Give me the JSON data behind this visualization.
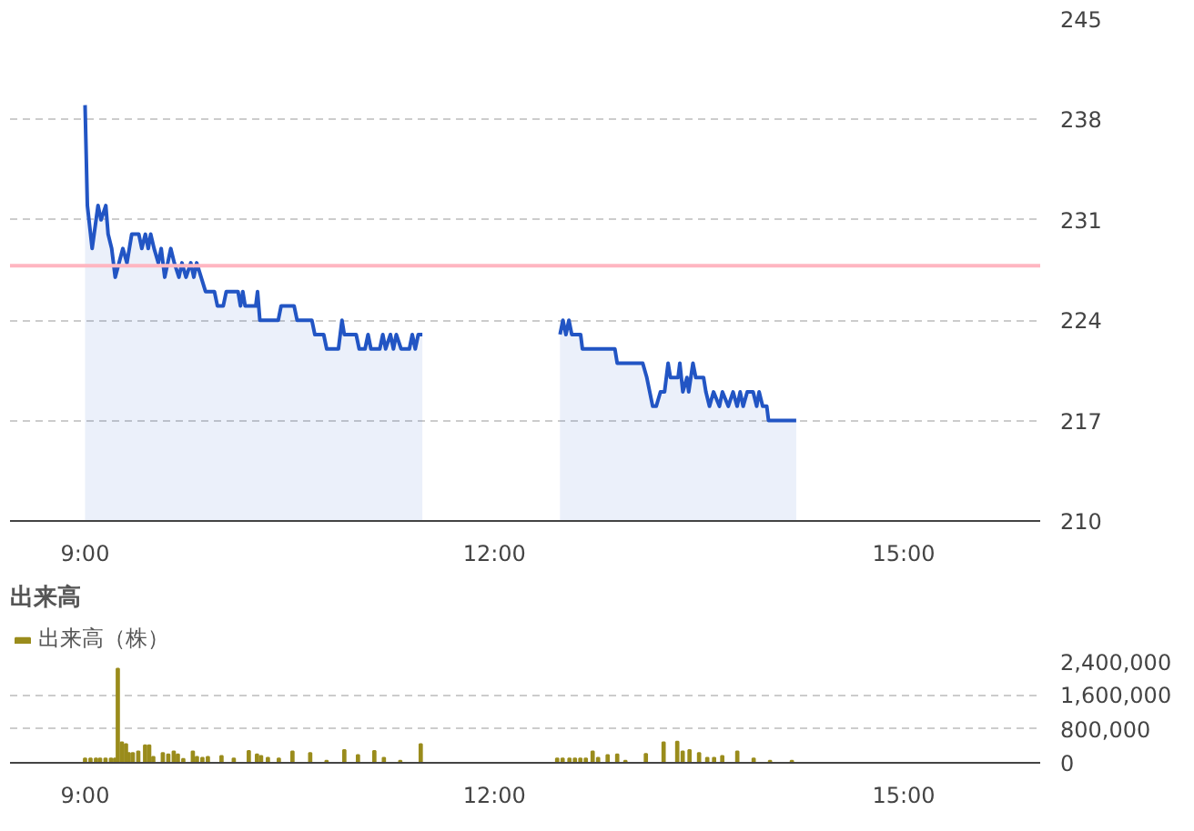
{
  "chart_data": [
    {
      "type": "area",
      "xlim": [
        8.45,
        16.0
      ],
      "xticks": [
        {
          "value": 9,
          "label": "9:00"
        },
        {
          "value": 12,
          "label": "12:00"
        },
        {
          "value": 15,
          "label": "15:00"
        }
      ],
      "ylim": [
        210,
        245
      ],
      "yticks": [
        210,
        217,
        224,
        231,
        238,
        245
      ],
      "grid": "y",
      "ref_lines": [
        {
          "axis": "y",
          "value": 227.8,
          "color": "#ffb6c1"
        }
      ],
      "series": [
        {
          "color": "#2255c4",
          "x": [
            9.0,
            9.017,
            9.052,
            9.095,
            9.117,
            9.152,
            9.169,
            9.195,
            9.221,
            9.277,
            9.307,
            9.342,
            9.394,
            9.416,
            9.442,
            9.463,
            9.481,
            9.506,
            9.537,
            9.558,
            9.584,
            9.628,
            9.654,
            9.688,
            9.71,
            9.74,
            9.775,
            9.797,
            9.818,
            9.883,
            9.948,
            9.97,
            10.013,
            10.035,
            10.121,
            10.139,
            10.156,
            10.173,
            10.251,
            10.264,
            10.281,
            10.416,
            10.437,
            10.532,
            10.554,
            10.662,
            10.684,
            10.749,
            10.771,
            10.857,
            10.883,
            10.9,
            10.987,
            11.009,
            11.052,
            11.074,
            11.095,
            11.16,
            11.182,
            11.203,
            11.238,
            11.26,
            11.281,
            11.316,
            11.377,
            11.398,
            11.42,
            11.442,
            11.472
          ],
          "values": [
            239,
            232,
            229,
            232,
            231,
            232,
            230,
            229,
            227,
            229,
            228,
            230,
            230,
            229,
            230,
            229,
            230,
            229,
            228,
            229,
            227,
            229,
            228,
            227,
            228,
            227,
            228,
            227,
            228,
            226,
            226,
            225,
            225,
            226,
            226,
            225,
            226,
            225,
            225,
            226,
            224,
            224,
            225,
            225,
            224,
            224,
            223,
            223,
            222,
            222,
            224,
            223,
            223,
            222,
            222,
            223,
            222,
            222,
            223,
            222,
            223,
            222,
            223,
            222,
            222,
            223,
            222,
            223,
            223
          ]
        },
        {
          "color": "#2255c4",
          "x": [
            12.481,
            12.502,
            12.524,
            12.546,
            12.567,
            12.632,
            12.645,
            12.883,
            12.9,
            13.087,
            13.117,
            13.16,
            13.186,
            13.217,
            13.247,
            13.273,
            13.29,
            13.346,
            13.359,
            13.381,
            13.411,
            13.424,
            13.455,
            13.476,
            13.533,
            13.55,
            13.576,
            13.606,
            13.649,
            13.671,
            13.714,
            13.749,
            13.779,
            13.801,
            13.823,
            13.853,
            13.896,
            13.922,
            13.94,
            13.966,
            13.996,
            14.009,
            14.212
          ],
          "values": [
            223,
            224,
            223,
            224,
            223,
            223,
            222,
            222,
            221,
            221,
            220,
            218,
            218,
            219,
            219,
            221,
            220,
            220,
            221,
            219,
            220,
            219,
            221,
            220,
            220,
            219,
            218,
            219,
            218,
            219,
            218,
            219,
            218,
            219,
            218,
            219,
            219,
            218,
            219,
            218,
            218,
            217,
            217
          ]
        }
      ]
    },
    {
      "type": "bar",
      "title": "出来高",
      "xlim": [
        8.45,
        16.0
      ],
      "xticks": [
        {
          "value": 9,
          "label": "9:00"
        },
        {
          "value": 12,
          "label": "12:00"
        },
        {
          "value": 15,
          "label": "15:00"
        }
      ],
      "ylim": [
        0,
        2400000
      ],
      "yticks": [
        {
          "value": 0,
          "label": "0"
        },
        {
          "value": 800000,
          "label": "800,000"
        },
        {
          "value": 1600000,
          "label": "1,600,000"
        },
        {
          "value": 2400000,
          "label": "2,400,000"
        }
      ],
      "grid": "y",
      "legend": "top left",
      "series": [
        {
          "name": "出来高（株）",
          "color": "#9a8c1c",
          "x": [
            9.0,
            9.04,
            9.08,
            9.11,
            9.15,
            9.19,
            9.22,
            9.24,
            9.27,
            9.3,
            9.32,
            9.35,
            9.39,
            9.44,
            9.47,
            9.5,
            9.57,
            9.61,
            9.65,
            9.68,
            9.72,
            9.79,
            9.82,
            9.86,
            9.9,
            10.0,
            10.09,
            10.2,
            10.26,
            10.29,
            10.34,
            10.42,
            10.52,
            10.65,
            10.77,
            10.9,
            11.0,
            11.12,
            11.19,
            11.31,
            11.46,
            12.46,
            12.5,
            12.55,
            12.59,
            12.63,
            12.67,
            12.72,
            12.76,
            12.83,
            12.9,
            12.96,
            13.11,
            13.24,
            13.34,
            13.38,
            13.43,
            13.5,
            13.56,
            13.61,
            13.67,
            13.78,
            13.9,
            14.02,
            14.18
          ],
          "values": [
            100000,
            100000,
            100000,
            100000,
            100000,
            100000,
            100000,
            2220000,
            480000,
            440000,
            230000,
            230000,
            270000,
            410000,
            410000,
            140000,
            230000,
            200000,
            270000,
            200000,
            90000,
            270000,
            140000,
            120000,
            140000,
            160000,
            100000,
            280000,
            200000,
            160000,
            120000,
            100000,
            270000,
            230000,
            50000,
            300000,
            180000,
            280000,
            120000,
            50000,
            440000,
            100000,
            100000,
            100000,
            100000,
            100000,
            100000,
            270000,
            120000,
            180000,
            200000,
            50000,
            210000,
            480000,
            500000,
            270000,
            300000,
            230000,
            120000,
            120000,
            160000,
            270000,
            100000,
            50000,
            50000
          ]
        }
      ]
    }
  ]
}
